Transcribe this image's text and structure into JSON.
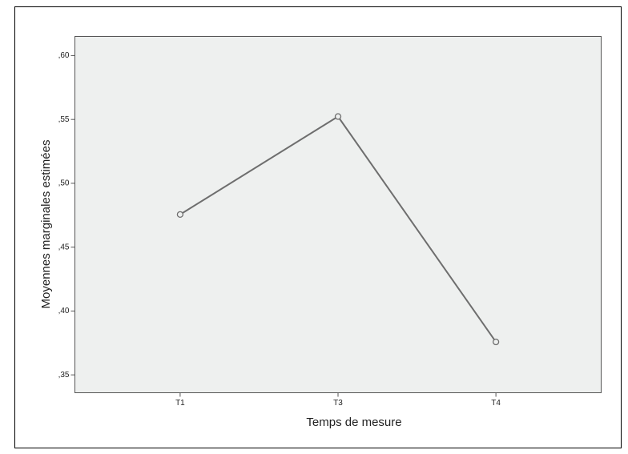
{
  "chart_data": {
    "type": "line",
    "x_label": "Temps de mesure",
    "y_label": "Moyennes marginales estimées",
    "categories": [
      "T1",
      "T3",
      "T4"
    ],
    "values": [
      0.4756,
      0.5523,
      0.3758
    ],
    "color": "#6e6e6e",
    "ylim": [
      0.336,
      0.615
    ],
    "yticks": [
      {
        "value": 0.35,
        "label": ",35"
      },
      {
        "value": 0.4,
        "label": ",40"
      },
      {
        "value": 0.45,
        "label": ",45"
      },
      {
        "value": 0.5,
        "label": ",50"
      },
      {
        "value": 0.55,
        "label": ",55"
      },
      {
        "value": 0.6,
        "label": ",60"
      }
    ],
    "grid": false
  }
}
